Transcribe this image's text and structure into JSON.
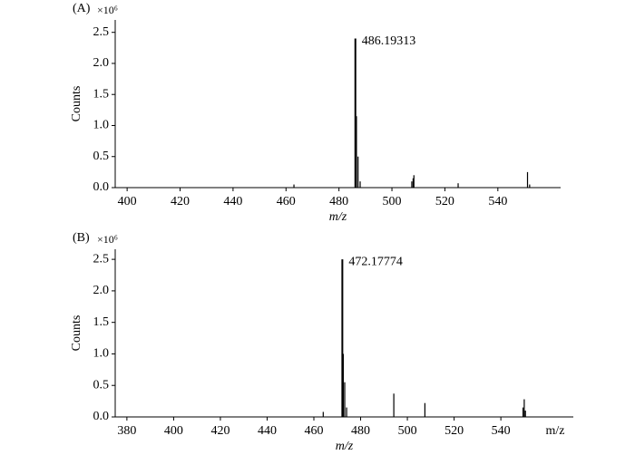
{
  "chart_data": [
    {
      "type": "spectrum",
      "panel_label": "(A)",
      "y_multiplier": "×10⁶",
      "ylabel": "Counts",
      "xlabel": "m/z",
      "peak_label": "486.19313",
      "x": [
        463,
        486.19313,
        486.6,
        487.2,
        488.0,
        507.5,
        508.0,
        508.3,
        525.0,
        551.2,
        552.0
      ],
      "values": [
        0.05,
        2.4,
        1.15,
        0.5,
        0.1,
        0.1,
        0.15,
        0.2,
        0.07,
        0.25,
        0.05
      ],
      "color": "#000000",
      "xlim": [
        395.5,
        563.7
      ],
      "xticks": [
        400,
        420,
        440,
        460,
        480,
        500,
        520,
        540
      ],
      "ylim": [
        0,
        2.7
      ],
      "yticks": [
        {
          "value": 0,
          "label": "0.0"
        },
        0.5,
        {
          "value": 1,
          "label": "1.0"
        },
        1.5,
        {
          "value": 2,
          "label": "2.0"
        },
        2.5
      ]
    },
    {
      "type": "spectrum",
      "panel_label": "(B)",
      "y_multiplier": "×10⁶",
      "ylabel": "Counts",
      "xlabel": "m/z",
      "x_unit_label": "m/z",
      "peak_label": "472.17774",
      "x": [
        464.0,
        472.17774,
        472.6,
        473.2,
        474.0,
        494.2,
        507.5,
        549.5,
        550.0,
        550.5
      ],
      "values": [
        0.08,
        2.5,
        1.0,
        0.55,
        0.15,
        0.37,
        0.22,
        0.15,
        0.28,
        0.1
      ],
      "color": "#000000",
      "xlim": [
        375,
        571
      ],
      "xticks": [
        380,
        400,
        420,
        440,
        460,
        480,
        500,
        520,
        540
      ],
      "ylim": [
        0,
        2.66
      ],
      "yticks": [
        {
          "value": 0,
          "label": "0.0"
        },
        0.5,
        {
          "value": 1,
          "label": "1.0"
        },
        1.5,
        {
          "value": 2,
          "label": "2.0"
        },
        2.5
      ]
    }
  ]
}
